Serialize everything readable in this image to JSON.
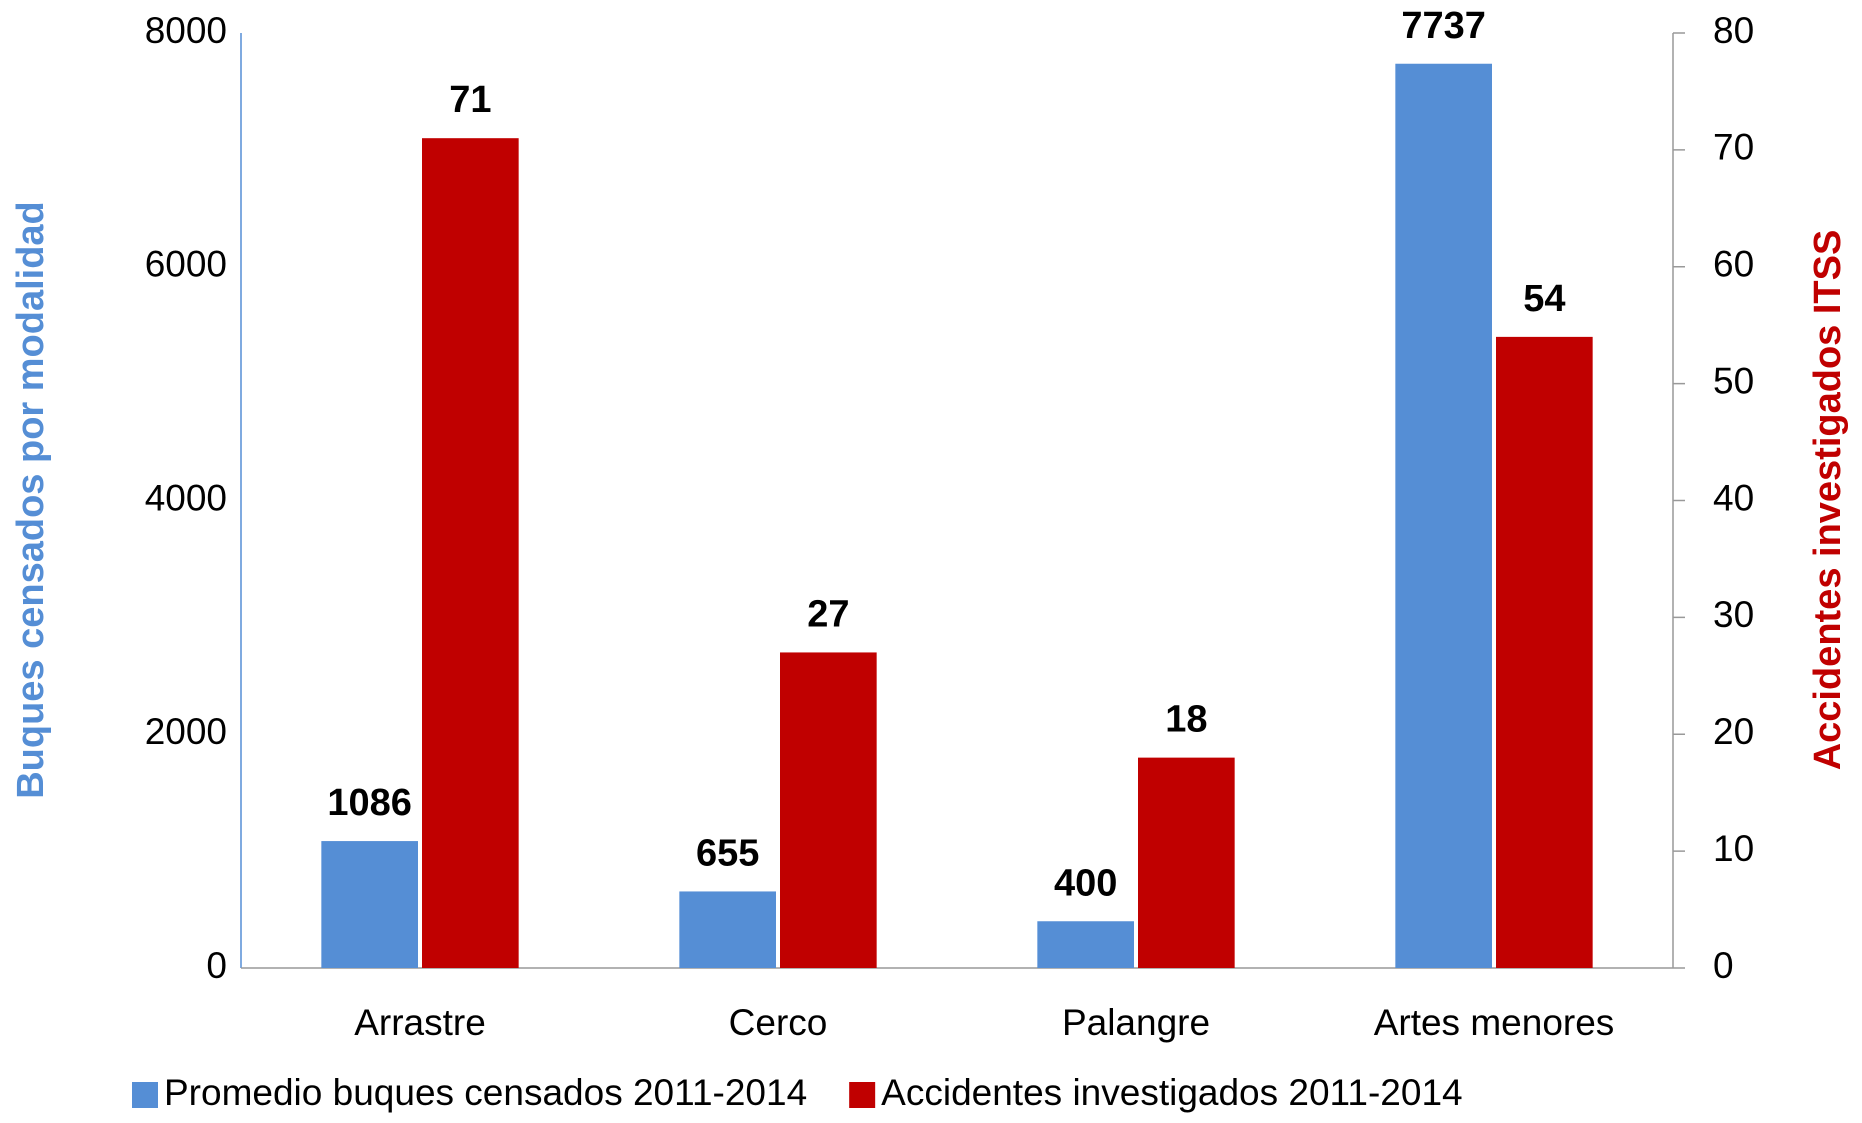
{
  "chart_data": {
    "type": "bar",
    "categories": [
      "Arrastre",
      "Cerco",
      "Palangre",
      "Artes menores"
    ],
    "series": [
      {
        "name": "Promedio buques censados 2011-2014",
        "color": "#558ed5",
        "values": [
          1086,
          655,
          400,
          7737
        ]
      },
      {
        "name": "Accidentes investigados 2011-2014",
        "color": "#c00000",
        "values": [
          71,
          27,
          18,
          54
        ],
        "axis": "y2"
      }
    ],
    "ylabel": "Buques censados por modalidad",
    "y2label": "Accidentes investigados ITSS",
    "ylim": [
      0,
      8000
    ],
    "yticks": [
      0,
      2000,
      4000,
      6000,
      8000
    ],
    "y2lim": [
      0,
      80
    ],
    "y2ticks": [
      0,
      10,
      20,
      30,
      40,
      50,
      60,
      70,
      80
    ],
    "legend": "bottom"
  }
}
